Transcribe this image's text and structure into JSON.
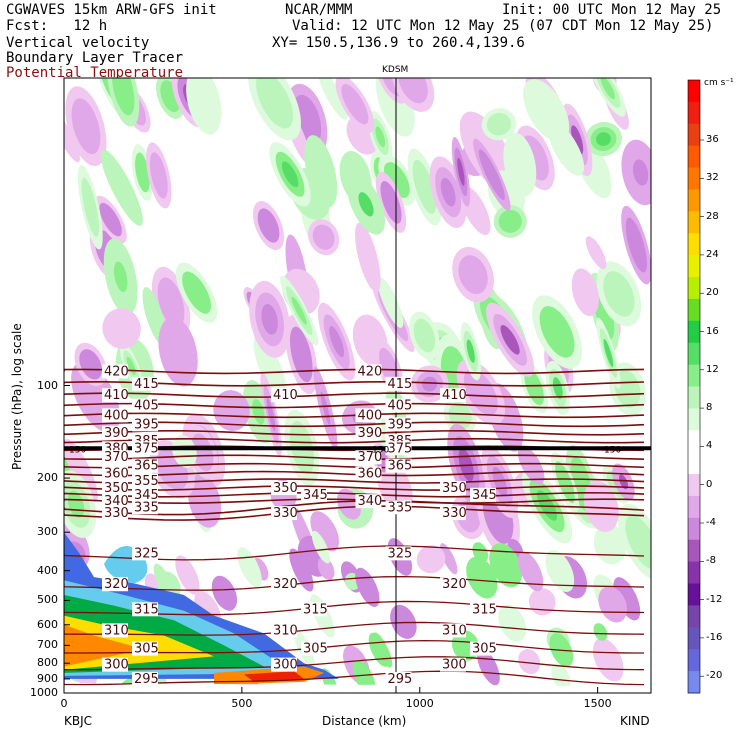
{
  "header": {
    "left_line1": "CGWAVES 15km ARW-GFS init",
    "left_line2": "Fcst:   12 h",
    "left_line3": "Vertical velocity",
    "left_line4": "Boundary Layer Tracer",
    "left_line5": "Potential Temperature",
    "center_line1": "NCAR/MMM",
    "init": "Init: 00 UTC Mon 12 May 25",
    "valid": "Valid: 12 UTC Mon 12 May 25 (07 CDT Mon 12 May 25)",
    "xy": "XY= 150.5,136.9 to 260.4,139.6"
  },
  "colors": {
    "theta_line": "#7a0d0d",
    "tracer_colors": [
      "#4169e1",
      "#66ccee",
      "#00aa44",
      "#aadd00",
      "#ffdd00",
      "#ff8800",
      "#ee2200"
    ]
  },
  "chart_data": {
    "type": "heatmap",
    "station_marker": "KDSM",
    "ylabel": "Pressure (hPa), log scale",
    "xlabel": "Distance (km)",
    "x_ticks": [
      "0",
      "500",
      "1000",
      "1500"
    ],
    "x_tick_values": [
      0,
      500,
      1000,
      1500
    ],
    "xlim": [
      0,
      1650
    ],
    "y_ticks": [
      "100",
      "200",
      "300",
      "400",
      "500",
      "600",
      "700",
      "800",
      "900",
      "1000"
    ],
    "y_tick_values": [
      100,
      200,
      300,
      400,
      500,
      600,
      700,
      800,
      900,
      1000
    ],
    "ylim": [
      1000,
      10
    ],
    "left_endpoint": "KBJC",
    "right_endpoint": "KIND",
    "colorbar": {
      "unit": "cm s⁻¹",
      "labels": [
        "36",
        "32",
        "28",
        "24",
        "20",
        "16",
        "12",
        "8",
        "4",
        "0",
        "-4",
        "-8",
        "-12",
        "-16",
        "-20"
      ]
    },
    "theta_contours": [
      {
        "value": 415,
        "labels": [
          "415",
          "415"
        ]
      },
      {
        "value": 410,
        "labels": [
          "410",
          "410",
          "410"
        ]
      },
      {
        "value": 405,
        "labels": [
          "405",
          "405"
        ]
      },
      {
        "value": 420,
        "labels": [
          "420",
          "420"
        ]
      },
      {
        "value": 400,
        "labels": [
          "400",
          "400"
        ]
      },
      {
        "value": 395,
        "labels": [
          "395",
          "395"
        ]
      },
      {
        "value": 390,
        "labels": [
          "390",
          "390"
        ]
      },
      {
        "value": 385,
        "labels": [
          "385",
          "385"
        ]
      },
      {
        "value": 380,
        "labels": [
          "380"
        ]
      },
      {
        "value": 375,
        "labels": [
          "375",
          "375"
        ]
      },
      {
        "value": 370,
        "labels": [
          "370",
          "370"
        ]
      },
      {
        "value": 365,
        "labels": [
          "365",
          "365"
        ]
      },
      {
        "value": 360,
        "labels": [
          "360",
          "360"
        ]
      },
      {
        "value": 355,
        "labels": [
          "355"
        ]
      },
      {
        "value": 350,
        "labels": [
          "350",
          "350",
          "350"
        ]
      },
      {
        "value": 345,
        "labels": [
          "345",
          "345",
          "345"
        ]
      },
      {
        "value": 340,
        "labels": [
          "340",
          "340"
        ]
      },
      {
        "value": 335,
        "labels": [
          "335",
          "335"
        ]
      },
      {
        "value": 330,
        "labels": [
          "330",
          "330",
          "330"
        ]
      },
      {
        "value": 325,
        "labels": [
          "325",
          "325"
        ]
      },
      {
        "value": 320,
        "labels": [
          "320",
          "320",
          "320"
        ]
      },
      {
        "value": 315,
        "labels": [
          "315",
          "315",
          "315"
        ]
      },
      {
        "value": 310,
        "labels": [
          "310",
          "310",
          "310"
        ]
      },
      {
        "value": 305,
        "labels": [
          "305",
          "305",
          "305"
        ]
      },
      {
        "value": 300,
        "labels": [
          "300",
          "300",
          "300"
        ]
      },
      {
        "value": 295,
        "labels": [
          "295",
          "295"
        ]
      }
    ],
    "tropopause_labels": [
      "150",
      "150",
      "150"
    ]
  }
}
